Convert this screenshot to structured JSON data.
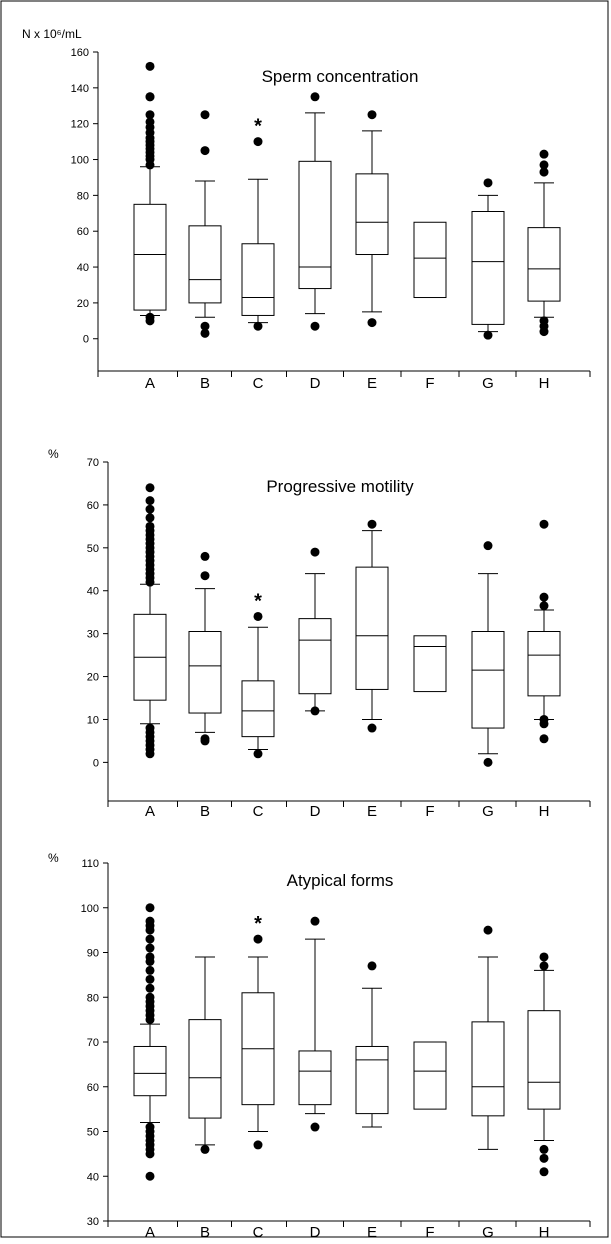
{
  "chart_data": [
    {
      "type": "box",
      "title": "Sperm concentration",
      "ylabel": "N x 10⁶/mL",
      "ylim": [
        -18,
        160
      ],
      "yticks": [
        0,
        20,
        40,
        60,
        80,
        100,
        120,
        140,
        160
      ],
      "categories": [
        "A",
        "B",
        "C",
        "D",
        "E",
        "F",
        "G",
        "H"
      ],
      "significant": [
        "C"
      ],
      "significance_marker": "*",
      "boxes": [
        {
          "min": 13,
          "q1": 16,
          "median": 47,
          "q3": 75,
          "max": 96,
          "outliers": [
            10,
            12,
            97,
            100,
            102,
            104,
            106,
            108,
            110,
            112,
            115,
            118,
            121,
            125,
            135,
            135,
            152
          ]
        },
        {
          "min": 12,
          "q1": 20,
          "median": 33,
          "q3": 63,
          "max": 88,
          "outliers": [
            3,
            7,
            105,
            125
          ]
        },
        {
          "min": 9,
          "q1": 13,
          "median": 23,
          "q3": 53,
          "max": 89,
          "outliers": [
            7,
            110
          ]
        },
        {
          "min": 14,
          "q1": 28,
          "median": 40,
          "q3": 99,
          "max": 126,
          "outliers": [
            7,
            135
          ]
        },
        {
          "min": 15,
          "q1": 47,
          "median": 65,
          "q3": 92,
          "max": 116,
          "outliers": [
            9,
            125
          ]
        },
        {
          "min": null,
          "q1": 23,
          "median": 45,
          "q3": 65,
          "max": null,
          "outliers": []
        },
        {
          "min": 4,
          "q1": 8,
          "median": 43,
          "q3": 71,
          "max": 80,
          "outliers": [
            2,
            87
          ]
        },
        {
          "min": 12,
          "q1": 21,
          "median": 39,
          "q3": 62,
          "max": 87,
          "outliers": [
            4,
            7,
            10,
            93,
            97,
            103
          ]
        }
      ]
    },
    {
      "type": "box",
      "title": "Progressive motility",
      "ylabel": "%",
      "ylim": [
        -9,
        70
      ],
      "yticks": [
        0,
        10,
        20,
        30,
        40,
        50,
        60,
        70
      ],
      "categories": [
        "A",
        "B",
        "C",
        "D",
        "E",
        "F",
        "G",
        "H"
      ],
      "significant": [
        "C"
      ],
      "significance_marker": "*",
      "boxes": [
        {
          "min": 9,
          "q1": 14.5,
          "median": 24.5,
          "q3": 34.5,
          "max": 41.5,
          "outliers": [
            2,
            3,
            4,
            5,
            6,
            7,
            8,
            42,
            43,
            44,
            45,
            46,
            47,
            48,
            49,
            50,
            51,
            52,
            53,
            54,
            55,
            57,
            59,
            61,
            64
          ]
        },
        {
          "min": 7,
          "q1": 11.5,
          "median": 22.5,
          "q3": 30.5,
          "max": 40.5,
          "outliers": [
            5,
            5.5,
            43.5,
            48
          ]
        },
        {
          "min": 3,
          "q1": 6,
          "median": 12,
          "q3": 19,
          "max": 31.5,
          "outliers": [
            2,
            34
          ]
        },
        {
          "min": 12,
          "q1": 16,
          "median": 28.5,
          "q3": 33.5,
          "max": 44,
          "outliers": [
            12,
            49
          ]
        },
        {
          "min": 10,
          "q1": 17,
          "median": 29.5,
          "q3": 45.5,
          "max": 54,
          "outliers": [
            8,
            55.5
          ]
        },
        {
          "min": null,
          "q1": 16.5,
          "median": 27,
          "q3": 29.5,
          "max": null,
          "outliers": []
        },
        {
          "min": 2,
          "q1": 8,
          "median": 21.5,
          "q3": 30.5,
          "max": 44,
          "outliers": [
            0,
            50.5
          ]
        },
        {
          "min": 10,
          "q1": 15.5,
          "median": 25,
          "q3": 30.5,
          "max": 35.5,
          "outliers": [
            5.5,
            9,
            10,
            36.5,
            38.5,
            55.5
          ]
        }
      ]
    },
    {
      "type": "box",
      "title": "Atypical forms",
      "ylabel": "%",
      "ylim": [
        30,
        110
      ],
      "yticks": [
        30,
        40,
        50,
        60,
        70,
        80,
        90,
        100,
        110
      ],
      "categories": [
        "A",
        "B",
        "C",
        "D",
        "E",
        "F",
        "G",
        "H"
      ],
      "significant": [
        "C"
      ],
      "significance_marker": "*",
      "boxes": [
        {
          "min": 52,
          "q1": 58,
          "median": 63,
          "q3": 69,
          "max": 74,
          "outliers": [
            40,
            45,
            46,
            47,
            48,
            49,
            50,
            51,
            75,
            76,
            77,
            78,
            79,
            80,
            82,
            84,
            86,
            88,
            89,
            91,
            93,
            95,
            96,
            97,
            100
          ]
        },
        {
          "min": 47,
          "q1": 53,
          "median": 62,
          "q3": 75,
          "max": 89,
          "outliers": [
            46
          ]
        },
        {
          "min": 50,
          "q1": 56,
          "median": 68.5,
          "q3": 81,
          "max": 89,
          "outliers": [
            47,
            93
          ]
        },
        {
          "min": 54,
          "q1": 56,
          "median": 63.5,
          "q3": 68,
          "max": 93,
          "outliers": [
            51,
            97
          ]
        },
        {
          "min": 51,
          "q1": 54,
          "median": 66,
          "q3": 69,
          "max": 82,
          "outliers": [
            87
          ]
        },
        {
          "min": null,
          "q1": 55,
          "median": 63.5,
          "q3": 70,
          "max": null,
          "outliers": []
        },
        {
          "min": 46,
          "q1": 53.5,
          "median": 60,
          "q3": 74.5,
          "max": 89,
          "outliers": [
            95
          ]
        },
        {
          "min": 48,
          "q1": 55,
          "median": 61,
          "q3": 77,
          "max": 86,
          "outliers": [
            41,
            44,
            46,
            87,
            89
          ]
        }
      ]
    }
  ]
}
